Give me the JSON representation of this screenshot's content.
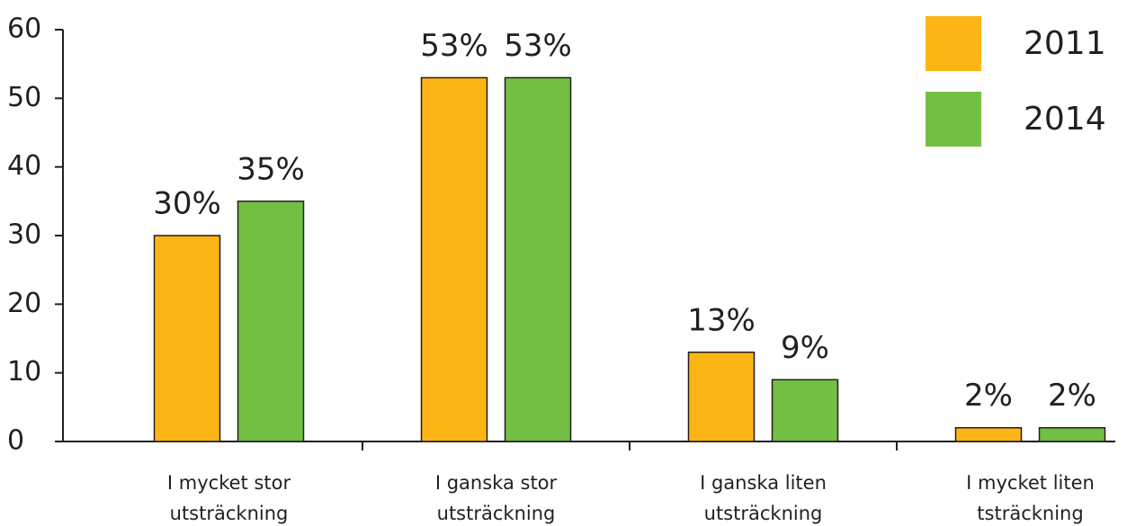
{
  "chart_data": {
    "type": "bar",
    "categories": [
      "I mycket stor\nutsträckning",
      "I ganska stor\nutsträckning",
      "I ganska liten\nutsträckning",
      "I mycket liten\ntsträckning"
    ],
    "series": [
      {
        "name": "2011",
        "color": "#fbb616",
        "values": [
          30,
          53,
          13,
          2
        ],
        "value_labels": [
          "30%",
          "53%",
          "13%",
          "2%"
        ]
      },
      {
        "name": "2014",
        "color": "#72bf44",
        "values": [
          35,
          53,
          9,
          2
        ],
        "value_labels": [
          "35%",
          "53%",
          "9%",
          "2%"
        ]
      }
    ],
    "ylim": [
      0,
      60
    ],
    "yticks": [
      0,
      10,
      20,
      30,
      40,
      50,
      60
    ],
    "grid": false,
    "legend": "top-right"
  }
}
